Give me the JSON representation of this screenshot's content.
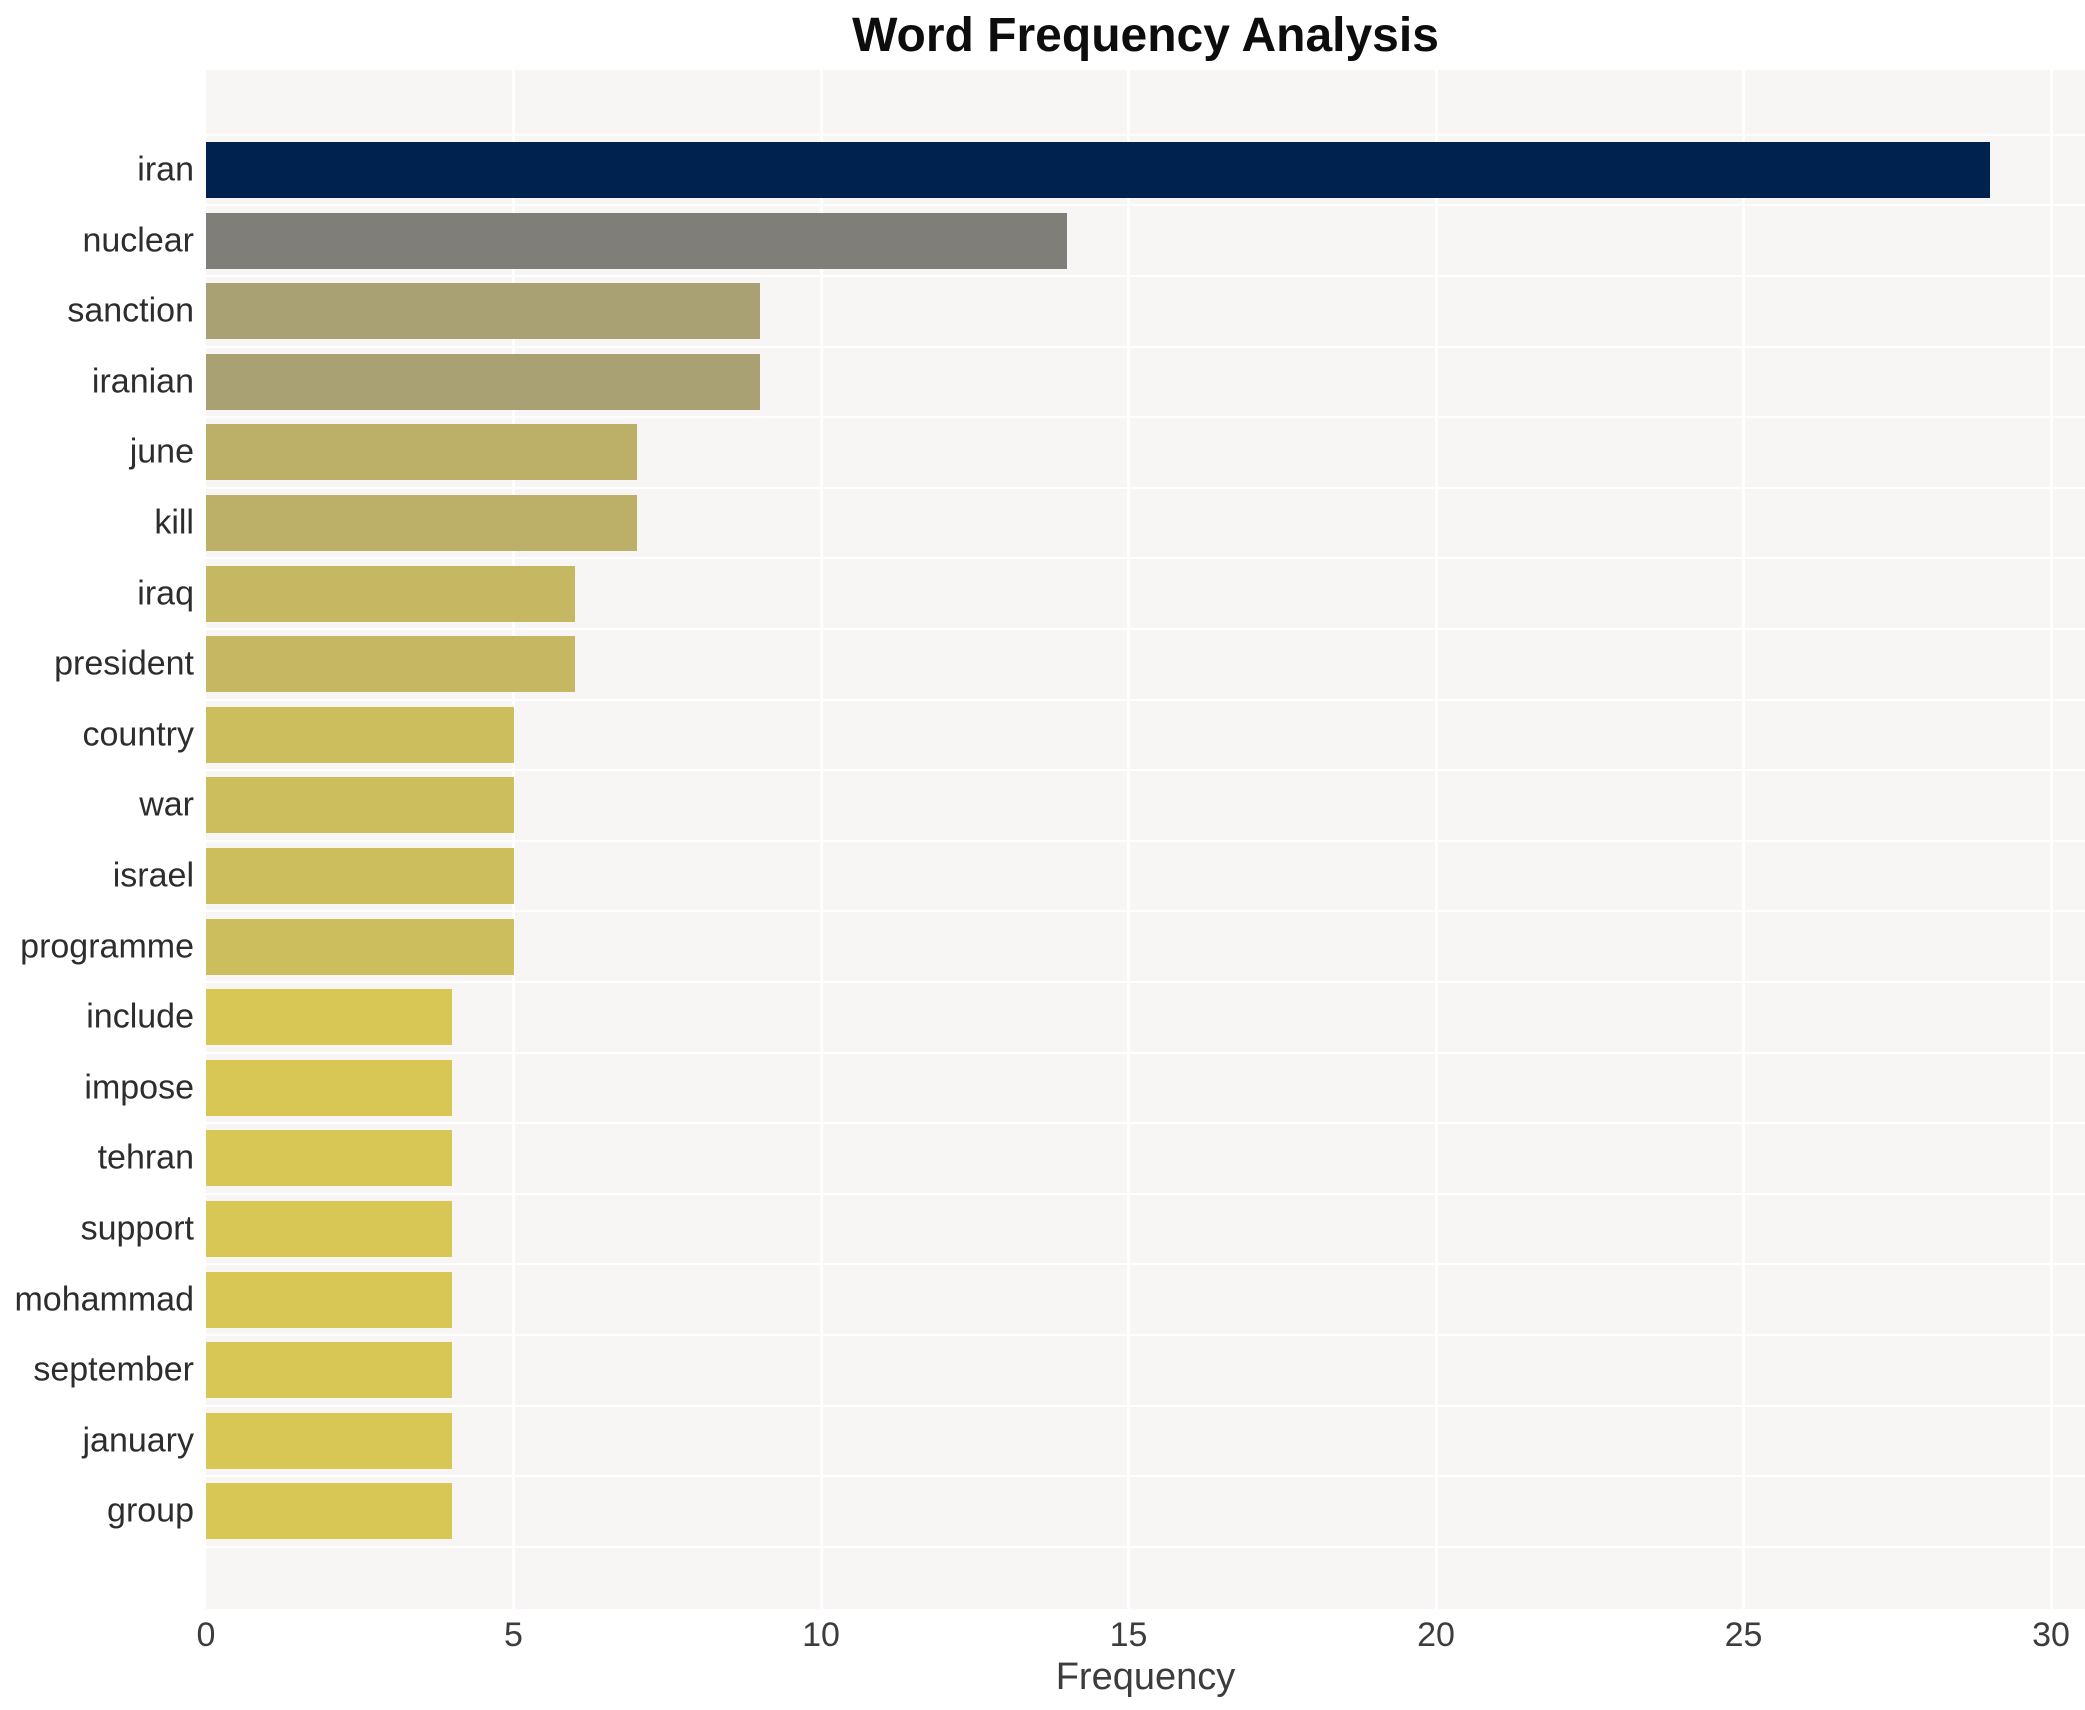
{
  "chart_data": {
    "type": "bar",
    "orientation": "horizontal",
    "title": "Word Frequency Analysis",
    "xlabel": "Frequency",
    "ylabel": "",
    "categories": [
      "iran",
      "nuclear",
      "sanction",
      "iranian",
      "june",
      "kill",
      "iraq",
      "president",
      "country",
      "war",
      "israel",
      "programme",
      "include",
      "impose",
      "tehran",
      "support",
      "mohammad",
      "september",
      "january",
      "group"
    ],
    "values": [
      29,
      14,
      9,
      9,
      7,
      7,
      6,
      6,
      5,
      5,
      5,
      5,
      4,
      4,
      4,
      4,
      4,
      4,
      4,
      4
    ],
    "bar_colors": [
      "#00224e",
      "#7f7e78",
      "#a9a073",
      "#a9a073",
      "#bcb068",
      "#bcb068",
      "#c6b763",
      "#c6b763",
      "#cdbe5d",
      "#cdbe5d",
      "#cdbe5d",
      "#cdbe5d",
      "#d8c655",
      "#d8c655",
      "#d8c655",
      "#d8c655",
      "#d8c655",
      "#d8c655",
      "#d8c655",
      "#d8c655"
    ],
    "xlim": [
      0,
      30.5
    ],
    "xticks": [
      0,
      5,
      10,
      15,
      20,
      25,
      30
    ],
    "grid": "white vertical gridlines at each x tick and white separators between category rows",
    "legend_position": "none",
    "plot_background": "#f7f6f4",
    "gridline_color": "#ffffff",
    "colors": {
      "title_text": "#0d0d0d",
      "axis_text": "#3c3c3c",
      "category_text": "#2d2d2d",
      "page_background": "#ffffff"
    }
  }
}
